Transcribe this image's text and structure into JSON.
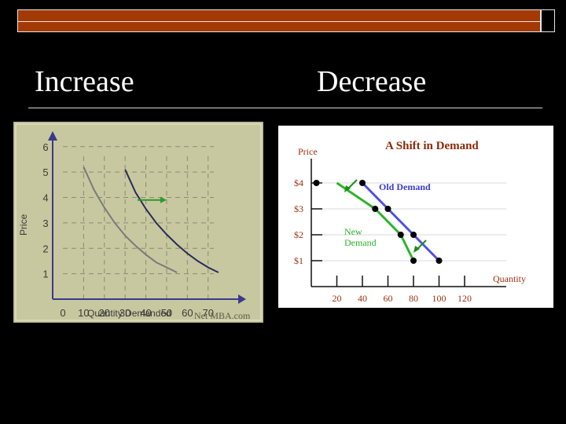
{
  "slide": {
    "left_heading": "Increase",
    "right_heading": "Decrease"
  },
  "colors": {
    "title_bar": "#a33a06",
    "left_panel_bg": "#c8c8a0",
    "right_panel_bg": "#ffffff",
    "old_demand": "#5050e6",
    "new_demand": "#2bb52b",
    "arrow_green": "#1e8c1e"
  },
  "chart_data": [
    {
      "type": "line",
      "xlabel": "Quantity Demanded",
      "ylabel": "Price",
      "x_ticks": [
        0,
        10,
        20,
        30,
        40,
        50,
        60,
        70
      ],
      "y_ticks": [
        1,
        2,
        3,
        4,
        5,
        6
      ],
      "xlim": [
        0,
        80
      ],
      "ylim": [
        0,
        7
      ],
      "grid": true,
      "watermark": "Net MBA.com",
      "series": [
        {
          "values_x": [
            10,
            15,
            20,
            25,
            30,
            35,
            40,
            45,
            50,
            55
          ],
          "values_y": [
            5.2,
            4.3,
            3.6,
            3.0,
            2.5,
            2.1,
            1.75,
            1.45,
            1.25,
            1.05
          ]
        },
        {
          "values_x": [
            30,
            35,
            40,
            45,
            50,
            55,
            60,
            65,
            70,
            75
          ],
          "values_y": [
            5.1,
            4.2,
            3.55,
            3.0,
            2.55,
            2.15,
            1.8,
            1.5,
            1.25,
            1.05
          ]
        }
      ],
      "annotations": [
        {
          "type": "arrow",
          "from": [
            36,
            3.9
          ],
          "to": [
            50,
            3.9
          ]
        }
      ]
    },
    {
      "type": "line",
      "title": "A Shift in Demand",
      "xlabel": "Quantity",
      "ylabel": "Price",
      "x_ticks": [
        "20",
        "40",
        "60",
        "80",
        "100",
        "120"
      ],
      "x_tick_values": [
        20,
        40,
        60,
        80,
        100,
        120
      ],
      "y_ticks": [
        "$1",
        "$2",
        "$3",
        "$4"
      ],
      "y_tick_values": [
        1,
        2,
        3,
        4
      ],
      "xlim": [
        0,
        130
      ],
      "ylim": [
        0,
        5
      ],
      "grid": true,
      "series": [
        {
          "name": "Old Demand",
          "x": [
            40,
            60,
            80,
            100
          ],
          "y": [
            4,
            3,
            2,
            1
          ]
        },
        {
          "name": "New Demand",
          "x": [
            20,
            50,
            70,
            80
          ],
          "y": [
            4,
            3,
            2,
            1
          ]
        }
      ],
      "series_labels": [
        "Old Demand",
        "New Demand"
      ],
      "annotations": [
        {
          "type": "arrow"
        },
        {
          "type": "arrow"
        }
      ]
    }
  ]
}
